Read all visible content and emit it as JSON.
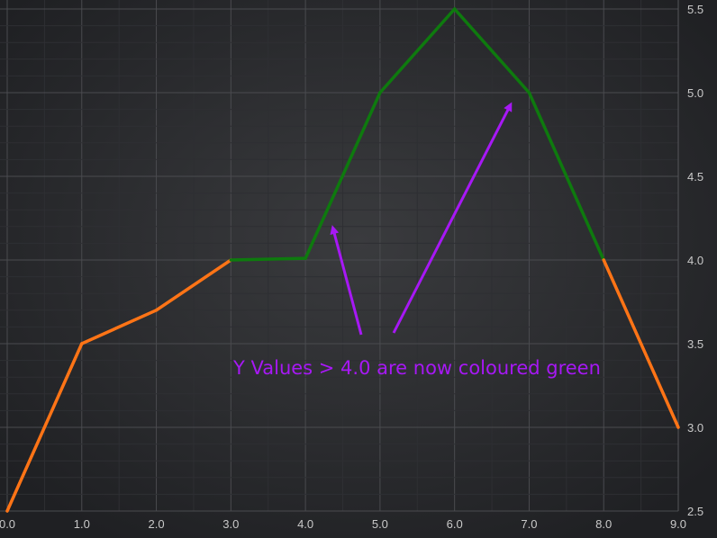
{
  "chart_data": {
    "type": "line",
    "x": [
      0,
      1,
      2,
      3,
      4,
      5,
      6,
      7,
      8,
      9
    ],
    "y": [
      2.5,
      3.5,
      3.7,
      4.0,
      4.01,
      5.0,
      5.5,
      5.0,
      4.0,
      3.0
    ],
    "xlim": [
      0,
      9
    ],
    "ylim": [
      2.5,
      5.5
    ],
    "x_ticks": [
      "0.0",
      "1.0",
      "2.0",
      "3.0",
      "4.0",
      "5.0",
      "6.0",
      "7.0",
      "8.0",
      "9.0"
    ],
    "y_ticks": [
      "2.5",
      "3.0",
      "3.5",
      "4.0",
      "4.5",
      "5.0",
      "5.5"
    ],
    "y_axis_side": "right",
    "grid": true,
    "threshold": 4.0,
    "colors": {
      "below_threshold": "#ff7416",
      "above_threshold": "#0e7a0e",
      "annotation": "#a718f5",
      "grid_major": "#4a4b4f",
      "grid_minor": "#2e2f33"
    },
    "annotation": {
      "text": "Y Values > 4.0 are now coloured green"
    }
  }
}
